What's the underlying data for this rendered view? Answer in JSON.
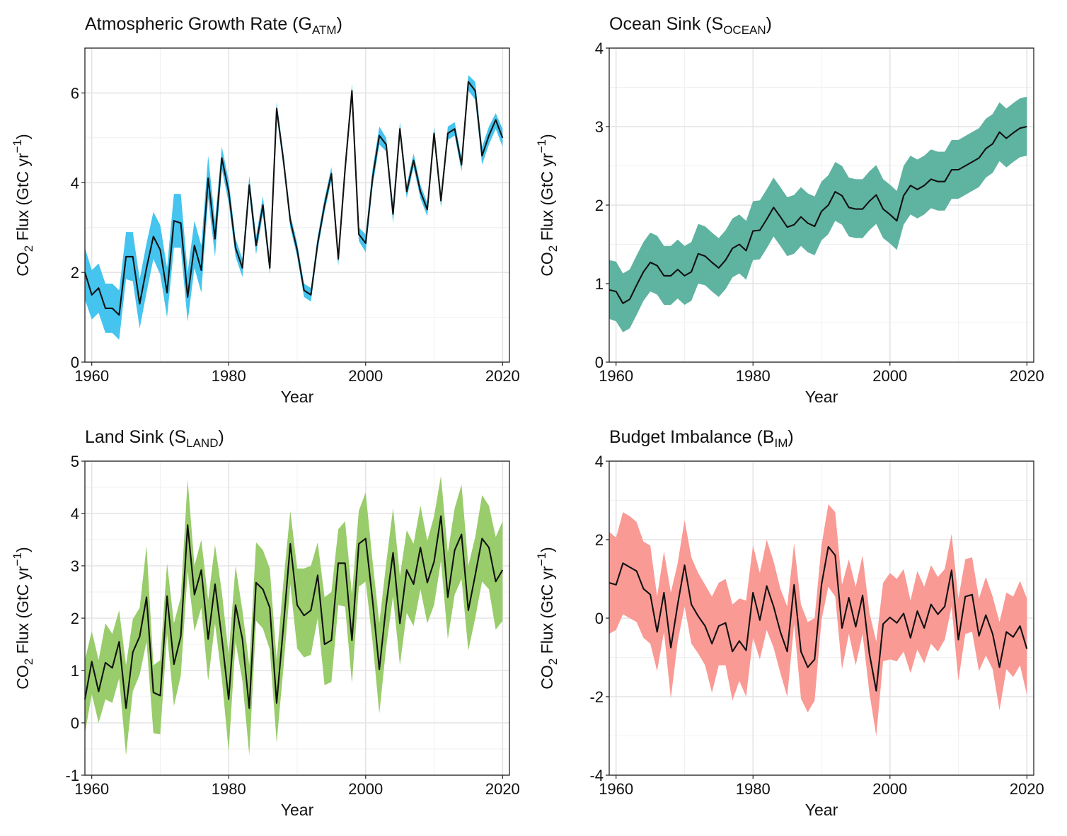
{
  "chart_data": [
    {
      "type": "line",
      "title_main": "Atmospheric Growth Rate (G",
      "title_sub": "ATM",
      "title_end": ")",
      "xlabel": "Year",
      "ylabel_pre": "CO",
      "ylabel_sub": "2",
      "ylabel_mid": " Flux (GtC  yr",
      "ylabel_sup": "−1",
      "ylabel_end": ")",
      "xlim": [
        1959,
        2021
      ],
      "ylim": [
        0,
        7
      ],
      "xticks": [
        1960,
        1980,
        2000,
        2020
      ],
      "yticks": [
        0,
        2,
        4,
        6
      ],
      "band_color": "#44c4ee",
      "x_start": 1959,
      "series": [
        {
          "type": "line",
          "values": [
            2.0,
            1.5,
            1.65,
            1.2,
            1.2,
            1.05,
            2.35,
            2.35,
            1.3,
            2.1,
            2.8,
            2.5,
            1.55,
            3.15,
            3.1,
            1.45,
            2.6,
            2.05,
            4.1,
            2.75,
            4.55,
            3.8,
            2.55,
            2.1,
            3.95,
            2.6,
            3.5,
            2.1,
            5.65,
            4.5,
            3.15,
            2.5,
            1.6,
            1.5,
            2.65,
            3.5,
            4.2,
            2.3,
            4.3,
            6.05,
            2.85,
            2.65,
            4.1,
            5.05,
            4.85,
            3.3,
            5.2,
            3.8,
            4.5,
            3.8,
            3.4,
            5.1,
            3.6,
            5.1,
            5.2,
            4.4,
            6.25,
            6.05,
            4.6,
            5.05,
            5.4,
            5.0
          ]
        },
        {
          "type": "band",
          "low": [
            1.4,
            0.95,
            1.1,
            0.65,
            0.65,
            0.5,
            1.85,
            1.8,
            0.75,
            1.55,
            2.3,
            1.95,
            1.0,
            2.55,
            2.55,
            0.9,
            2.1,
            1.55,
            3.65,
            2.35,
            4.3,
            3.55,
            2.35,
            1.9,
            3.75,
            2.4,
            3.3,
            1.95,
            5.5,
            4.35,
            3.0,
            2.35,
            1.45,
            1.35,
            2.5,
            3.35,
            4.05,
            2.15,
            4.15,
            5.9,
            2.7,
            2.45,
            3.9,
            4.85,
            4.7,
            3.1,
            5.05,
            3.65,
            4.35,
            3.65,
            3.25,
            4.95,
            3.45,
            4.95,
            5.05,
            4.25,
            6.05,
            5.85,
            4.4,
            4.85,
            5.2,
            4.8
          ],
          "high": [
            2.55,
            2.05,
            2.2,
            1.75,
            1.75,
            1.6,
            2.9,
            2.9,
            1.85,
            2.65,
            3.35,
            3.05,
            2.1,
            3.75,
            3.75,
            2.0,
            3.15,
            2.6,
            4.6,
            3.15,
            4.8,
            4.05,
            2.75,
            2.3,
            4.15,
            2.8,
            3.7,
            2.25,
            5.8,
            4.65,
            3.3,
            2.65,
            1.75,
            1.65,
            2.8,
            3.65,
            4.35,
            2.45,
            4.45,
            6.2,
            3.0,
            2.85,
            4.3,
            5.25,
            5.0,
            3.5,
            5.35,
            3.95,
            4.65,
            3.95,
            3.55,
            5.25,
            3.75,
            5.25,
            5.35,
            4.55,
            6.4,
            6.25,
            4.8,
            5.25,
            5.55,
            5.2
          ]
        }
      ]
    },
    {
      "type": "line",
      "title_main": "Ocean Sink (S",
      "title_sub": "OCEAN",
      "title_end": ")",
      "xlabel": "Year",
      "ylabel_pre": "CO",
      "ylabel_sub": "2",
      "ylabel_mid": " Flux (GtC  yr",
      "ylabel_sup": "−1",
      "ylabel_end": ")",
      "xlim": [
        1959,
        2021
      ],
      "ylim": [
        0,
        4
      ],
      "xticks": [
        1960,
        1980,
        2000,
        2020
      ],
      "yticks": [
        0,
        1,
        2,
        3,
        4
      ],
      "band_color": "#5fb3a1",
      "x_start": 1959,
      "series": [
        {
          "type": "line",
          "values": [
            0.92,
            0.9,
            0.75,
            0.8,
            0.98,
            1.15,
            1.27,
            1.23,
            1.1,
            1.1,
            1.18,
            1.1,
            1.15,
            1.38,
            1.35,
            1.27,
            1.2,
            1.3,
            1.45,
            1.5,
            1.42,
            1.67,
            1.68,
            1.82,
            1.97,
            1.85,
            1.72,
            1.75,
            1.85,
            1.77,
            1.73,
            1.92,
            2.0,
            2.17,
            2.12,
            1.97,
            1.95,
            1.95,
            2.05,
            2.13,
            1.95,
            1.88,
            1.8,
            2.12,
            2.25,
            2.2,
            2.25,
            2.33,
            2.3,
            2.3,
            2.45,
            2.45,
            2.5,
            2.55,
            2.6,
            2.72,
            2.78,
            2.93,
            2.85,
            2.92,
            2.98,
            3.0
          ]
        },
        {
          "type": "band",
          "low": [
            0.55,
            0.52,
            0.38,
            0.43,
            0.6,
            0.78,
            0.9,
            0.86,
            0.73,
            0.73,
            0.81,
            0.73,
            0.78,
            1.0,
            0.98,
            0.9,
            0.83,
            0.93,
            1.08,
            1.13,
            1.05,
            1.3,
            1.31,
            1.45,
            1.6,
            1.48,
            1.35,
            1.38,
            1.48,
            1.4,
            1.36,
            1.55,
            1.63,
            1.8,
            1.75,
            1.6,
            1.58,
            1.58,
            1.68,
            1.76,
            1.58,
            1.51,
            1.43,
            1.75,
            1.88,
            1.83,
            1.88,
            1.96,
            1.93,
            1.93,
            2.08,
            2.08,
            2.13,
            2.18,
            2.23,
            2.35,
            2.41,
            2.56,
            2.48,
            2.55,
            2.61,
            2.63
          ],
          "high": [
            1.3,
            1.28,
            1.13,
            1.18,
            1.36,
            1.53,
            1.65,
            1.61,
            1.48,
            1.48,
            1.56,
            1.48,
            1.53,
            1.76,
            1.73,
            1.65,
            1.58,
            1.68,
            1.83,
            1.88,
            1.8,
            2.05,
            2.06,
            2.2,
            2.35,
            2.23,
            2.1,
            2.13,
            2.23,
            2.15,
            2.11,
            2.3,
            2.38,
            2.55,
            2.5,
            2.35,
            2.33,
            2.33,
            2.43,
            2.51,
            2.33,
            2.26,
            2.18,
            2.5,
            2.63,
            2.58,
            2.63,
            2.71,
            2.68,
            2.68,
            2.83,
            2.83,
            2.88,
            2.93,
            2.98,
            3.1,
            3.16,
            3.31,
            3.23,
            3.3,
            3.36,
            3.38
          ]
        }
      ]
    },
    {
      "type": "line",
      "title_main": "Land Sink (S",
      "title_sub": "LAND",
      "title_end": ")",
      "xlabel": "Year",
      "ylabel_pre": "CO",
      "ylabel_sub": "2",
      "ylabel_mid": " Flux (GtC  yr",
      "ylabel_sup": "−1",
      "ylabel_end": ")",
      "xlim": [
        1959,
        2021
      ],
      "ylim": [
        -1,
        5
      ],
      "xticks": [
        1960,
        1980,
        2000,
        2020
      ],
      "yticks": [
        -1,
        0,
        1,
        2,
        3,
        4,
        5
      ],
      "band_color": "#99cc6a",
      "x_start": 1959,
      "series": [
        {
          "type": "line",
          "values": [
            0.45,
            1.17,
            0.6,
            1.15,
            1.05,
            1.55,
            0.28,
            1.35,
            1.65,
            2.4,
            0.58,
            0.52,
            2.42,
            1.12,
            1.65,
            3.78,
            2.45,
            2.92,
            1.6,
            2.65,
            1.62,
            0.45,
            2.25,
            1.6,
            0.28,
            2.68,
            2.55,
            2.2,
            0.38,
            1.85,
            3.42,
            2.25,
            2.05,
            2.15,
            2.82,
            1.5,
            1.58,
            3.05,
            3.05,
            1.58,
            3.42,
            3.52,
            2.35,
            1.02,
            2.25,
            3.25,
            1.9,
            2.92,
            2.65,
            3.35,
            2.68,
            3.08,
            3.95,
            2.4,
            3.3,
            3.6,
            2.15,
            2.82,
            3.52,
            3.35,
            2.7,
            2.92
          ]
        },
        {
          "type": "band",
          "low": [
            -0.2,
            0.55,
            0.0,
            0.45,
            0.38,
            0.85,
            -0.62,
            0.6,
            0.92,
            1.55,
            -0.2,
            -0.22,
            1.7,
            0.32,
            0.9,
            2.9,
            1.75,
            2.2,
            0.8,
            1.9,
            0.85,
            -0.55,
            1.55,
            0.8,
            -0.62,
            1.95,
            1.8,
            1.4,
            -0.38,
            1.05,
            2.65,
            1.42,
            1.25,
            1.3,
            2.0,
            0.72,
            0.78,
            2.25,
            2.22,
            0.75,
            2.6,
            2.7,
            1.55,
            0.18,
            1.45,
            2.42,
            1.1,
            2.1,
            1.85,
            2.55,
            1.9,
            2.25,
            3.1,
            1.6,
            2.45,
            2.75,
            1.38,
            2.0,
            2.7,
            2.55,
            1.78,
            1.95
          ],
          "high": [
            1.2,
            1.75,
            1.2,
            1.9,
            1.7,
            2.15,
            1.1,
            1.98,
            2.2,
            3.38,
            1.1,
            1.2,
            3.05,
            1.9,
            2.4,
            4.65,
            3.0,
            3.5,
            2.35,
            3.4,
            2.5,
            1.3,
            3.0,
            2.15,
            1.1,
            3.45,
            3.3,
            2.95,
            1.2,
            2.7,
            4.05,
            2.95,
            2.95,
            3.0,
            3.45,
            2.4,
            2.5,
            3.7,
            3.85,
            2.45,
            4.05,
            4.4,
            3.1,
            1.9,
            3.05,
            4.1,
            2.8,
            3.68,
            3.42,
            4.15,
            3.48,
            3.95,
            4.72,
            3.25,
            4.1,
            4.55,
            3.0,
            3.55,
            4.35,
            4.15,
            3.55,
            3.85
          ]
        }
      ]
    },
    {
      "type": "line",
      "title_main": "Budget Imbalance (B",
      "title_sub": "IM",
      "title_end": ")",
      "xlabel": "Year",
      "ylabel_pre": "CO",
      "ylabel_sub": "2",
      "ylabel_mid": " Flux (GtC  yr",
      "ylabel_sup": "−1",
      "ylabel_end": ")",
      "xlim": [
        1959,
        2021
      ],
      "ylim": [
        -4,
        4
      ],
      "xticks": [
        1960,
        1980,
        2000,
        2020
      ],
      "yticks": [
        -4,
        -2,
        0,
        2,
        4
      ],
      "band_color": "#f99a95",
      "x_start": 1959,
      "series": [
        {
          "type": "line",
          "values": [
            0.9,
            0.85,
            1.4,
            1.3,
            1.2,
            0.75,
            0.6,
            -0.35,
            0.65,
            -0.75,
            0.35,
            1.35,
            0.35,
            0.05,
            -0.2,
            -0.65,
            -0.2,
            -0.12,
            -0.85,
            -0.58,
            -0.82,
            0.65,
            -0.05,
            0.82,
            0.3,
            -0.35,
            -0.85,
            0.85,
            -0.85,
            -1.25,
            -1.05,
            0.85,
            1.82,
            1.6,
            -0.25,
            0.52,
            -0.22,
            0.58,
            -0.9,
            -1.85,
            -0.15,
            0.02,
            -0.12,
            0.12,
            -0.5,
            0.18,
            -0.25,
            0.35,
            0.1,
            0.3,
            1.22,
            -0.55,
            0.55,
            0.6,
            -0.45,
            0.08,
            -0.4,
            -1.25,
            -0.35,
            -0.48,
            -0.2,
            -0.78
          ]
        },
        {
          "type": "band",
          "low": [
            -0.4,
            -0.3,
            0.1,
            0.0,
            -0.1,
            -0.5,
            -0.65,
            -1.35,
            -0.35,
            -2.05,
            -0.6,
            0.3,
            -0.65,
            -0.9,
            -1.2,
            -1.9,
            -1.2,
            -1.2,
            -2.1,
            -1.6,
            -2.0,
            -0.5,
            -1.05,
            -0.3,
            -0.75,
            -1.4,
            -2.0,
            -0.15,
            -2.05,
            -2.4,
            -2.1,
            -0.05,
            0.8,
            0.55,
            -1.3,
            -0.4,
            -1.2,
            -0.4,
            -1.9,
            -3.0,
            -1.1,
            -1.05,
            -1.1,
            -0.85,
            -1.4,
            -0.8,
            -1.15,
            -0.65,
            -0.85,
            -0.55,
            0.3,
            -1.6,
            -0.4,
            -0.35,
            -1.35,
            -0.95,
            -1.3,
            -2.35,
            -1.3,
            -1.5,
            -1.2,
            -1.95
          ],
          "high": [
            2.2,
            2.05,
            2.7,
            2.6,
            2.45,
            1.95,
            1.85,
            0.55,
            1.7,
            0.65,
            1.4,
            2.5,
            1.55,
            1.15,
            0.85,
            0.55,
            0.9,
            1.0,
            0.35,
            0.5,
            0.45,
            1.85,
            1.15,
            2.0,
            1.45,
            0.75,
            0.3,
            1.9,
            0.35,
            -0.1,
            0.0,
            1.85,
            2.9,
            2.7,
            0.85,
            1.5,
            0.8,
            1.6,
            0.15,
            -0.6,
            0.9,
            1.15,
            1.0,
            1.25,
            0.45,
            1.2,
            0.8,
            1.35,
            1.05,
            1.25,
            2.15,
            0.5,
            1.5,
            1.55,
            0.5,
            1.05,
            0.55,
            -0.1,
            0.65,
            0.55,
            0.95,
            0.5
          ]
        }
      ]
    }
  ]
}
